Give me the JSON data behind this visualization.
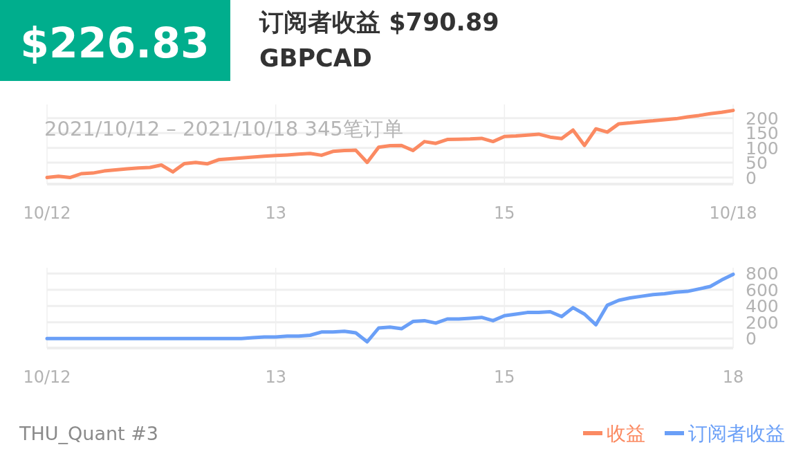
{
  "chart_data": [
    {
      "type": "line",
      "title": "订阅者收益 $790.89",
      "subtitle": "GBPCAD",
      "annotations": [
        "$226.83",
        "2021/10/12 – 2021/10/18  345笔订单"
      ],
      "categories": [
        "10/12",
        null,
        null,
        null,
        null,
        null,
        null,
        null,
        null,
        null,
        null,
        null,
        null,
        null,
        null,
        null,
        null,
        null,
        null,
        null,
        "13",
        null,
        null,
        null,
        null,
        null,
        null,
        null,
        null,
        null,
        null,
        null,
        null,
        null,
        null,
        null,
        null,
        null,
        null,
        null,
        "15",
        null,
        null,
        null,
        null,
        null,
        null,
        null,
        null,
        null,
        null,
        null,
        null,
        null,
        null,
        null,
        null,
        null,
        null,
        null,
        "10/18"
      ],
      "series": [
        {
          "name": "收益",
          "color": "#fb8a62",
          "values": [
            0,
            4,
            0,
            13,
            15,
            22,
            26,
            29,
            32,
            34,
            42,
            19,
            47,
            51,
            46,
            60,
            63,
            66,
            69,
            72,
            74,
            76,
            79,
            81,
            75,
            88,
            91,
            92,
            51,
            102,
            107,
            108,
            91,
            121,
            115,
            128,
            129,
            130,
            132,
            121,
            138,
            140,
            143,
            146,
            136,
            131,
            160,
            108,
            164,
            153,
            181,
            184,
            188,
            191,
            195,
            198,
            204,
            209,
            215,
            220,
            226
          ]
        }
      ],
      "ylim": [
        -22,
        246
      ],
      "yticks": [
        0,
        50,
        100,
        150,
        200
      ],
      "grid": true,
      "legend": "bottom right"
    },
    {
      "type": "line",
      "annotations": [
        "THU_Quant #3"
      ],
      "categories": [
        "10/12",
        null,
        null,
        null,
        null,
        null,
        null,
        null,
        null,
        null,
        null,
        null,
        null,
        null,
        null,
        null,
        null,
        null,
        null,
        null,
        "13",
        null,
        null,
        null,
        null,
        null,
        null,
        null,
        null,
        null,
        null,
        null,
        null,
        null,
        null,
        null,
        null,
        null,
        null,
        null,
        "15",
        null,
        null,
        null,
        null,
        null,
        null,
        null,
        null,
        null,
        null,
        null,
        null,
        null,
        null,
        null,
        null,
        null,
        null,
        null,
        "18"
      ],
      "series": [
        {
          "name": "订阅者收益",
          "color": "#6a9ff7",
          "values": [
            0,
            0,
            0,
            0,
            0,
            0,
            0,
            0,
            0,
            0,
            0,
            0,
            0,
            0,
            0,
            0,
            0,
            0,
            10,
            20,
            20,
            30,
            30,
            40,
            80,
            80,
            90,
            70,
            -40,
            130,
            140,
            120,
            210,
            220,
            190,
            240,
            240,
            250,
            260,
            220,
            280,
            300,
            320,
            320,
            330,
            270,
            380,
            300,
            170,
            410,
            470,
            500,
            520,
            540,
            550,
            570,
            580,
            610,
            640,
            720,
            790
          ]
        }
      ],
      "ylim": [
        -117,
        870
      ],
      "yticks": [
        0,
        200,
        400,
        600,
        800
      ],
      "grid": true,
      "legend": "bottom right"
    }
  ]
}
